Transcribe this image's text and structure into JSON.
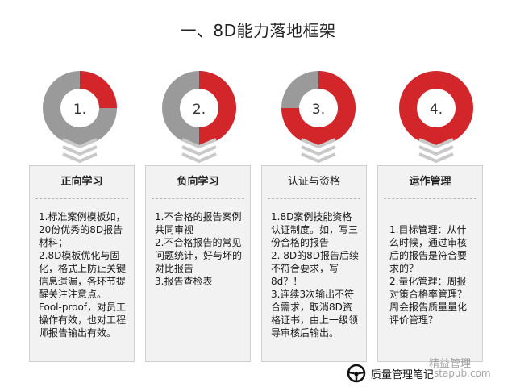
{
  "title": "一、8D能力落地框架",
  "colors": {
    "red": "#d3262b",
    "gray": "#9a9a9a",
    "chevron": "#c9c9c9"
  },
  "stages": [
    {
      "number": "1.",
      "red_fraction": 0.25
    },
    {
      "number": "2.",
      "red_fraction": 0.5
    },
    {
      "number": "3.",
      "red_fraction": 0.75
    },
    {
      "number": "4.",
      "red_fraction": 1.0
    }
  ],
  "cards": [
    {
      "heading": "正向学习",
      "body": "1.标准案例模板如，20份优秀的8D报告材料；\n2.8D模板优化与固化，格式上防止关键信息遗漏，各环节提醒关注注意点。Fool-proof，对员工操作有效，也对工程师报告输出有效。"
    },
    {
      "heading": "负向学习",
      "body": "1.不合格的报告案例共同审视\n2.不合格报告的常见问题统计，好与坏的对比报告\n3.报告查检表"
    },
    {
      "heading": "认证与资格",
      "body": "1.8D案例技能资格认证制度。如，写三份合格的报告\n2. 8D的8D报告后续不符合要求，写8d？！\n3.连续3次输出不符合需求，取消8D资格证书，由上一级领导审核后输出。"
    },
    {
      "heading": "运作管理",
      "body": "1.目标管理：从什么时候，通过审核后的报告是符合要求的？\n2.量化管理：周报对策合格率管理？周会报告质量量化评价管理？"
    }
  ],
  "footer": {
    "brand": "质量管理笔记",
    "watermark_1": "精益管理",
    "watermark_2": "stapub.com"
  }
}
